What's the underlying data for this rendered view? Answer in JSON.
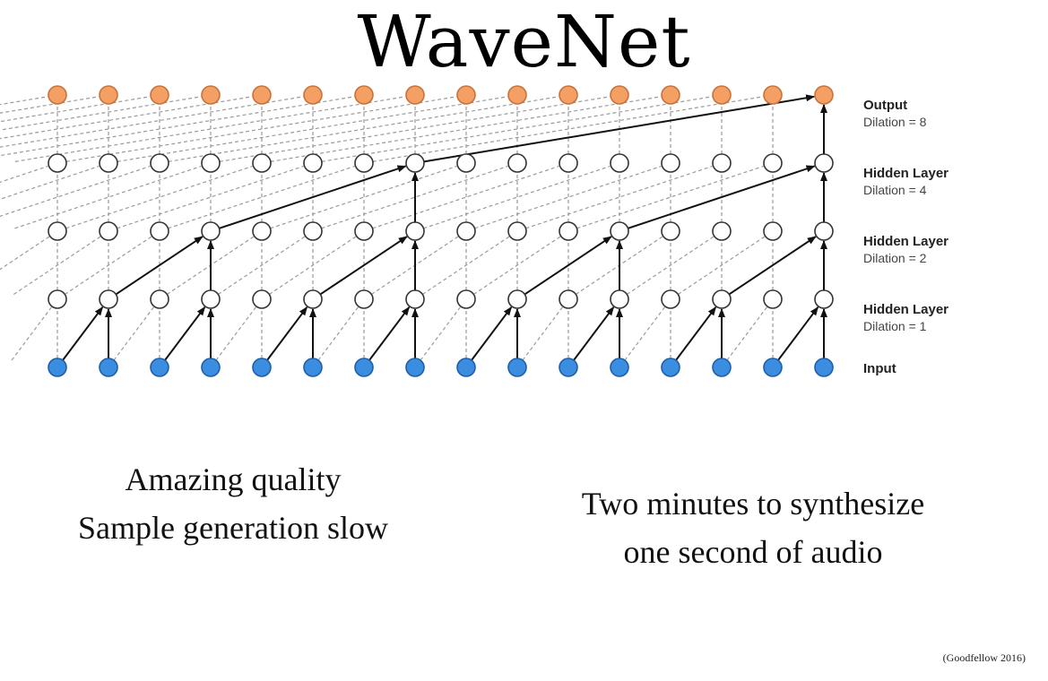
{
  "title": "WaveNet",
  "diagram": {
    "nodes_per_layer": 16,
    "layers": [
      {
        "name": "Output",
        "dilation": "Dilation = 8",
        "color": "#f4a064",
        "stroke": "#c8723a"
      },
      {
        "name": "Hidden Layer",
        "dilation": "Dilation = 4",
        "color": "#ffffff",
        "stroke": "#333333"
      },
      {
        "name": "Hidden Layer",
        "dilation": "Dilation = 2",
        "color": "#ffffff",
        "stroke": "#333333"
      },
      {
        "name": "Hidden Layer",
        "dilation": "Dilation = 1",
        "color": "#ffffff",
        "stroke": "#333333"
      },
      {
        "name": "Input",
        "dilation": "",
        "color": "#3b8de0",
        "stroke": "#1f5fa8"
      }
    ],
    "dilations": [
      1,
      2,
      4,
      8
    ],
    "highlighted_output_node": 16
  },
  "captions": {
    "left": [
      "Amazing quality",
      "Sample generation slow"
    ],
    "right": [
      "Two minutes to synthesize",
      "one second of audio"
    ]
  },
  "citation": "(Goodfellow 2016)"
}
